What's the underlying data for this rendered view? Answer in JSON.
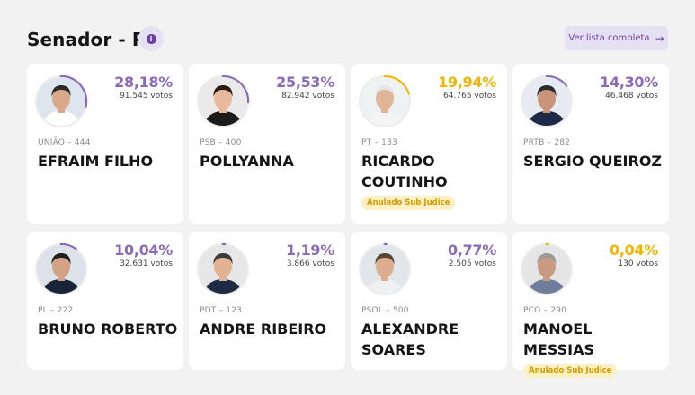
{
  "header": {
    "title": "Senador - PB",
    "info_icon": "info-icon",
    "list_button_label": "Ver lista completa",
    "list_button_icon": "arrow-right-icon"
  },
  "colors": {
    "accent": "#8b6bb8",
    "annulled": "#f5b400",
    "badge_bg": "#fcf0c4"
  },
  "candidates": [
    {
      "party": "UNIÃO – 444",
      "name": "EFRAIM FILHO",
      "pct": "28,18%",
      "votes": "91.545 votos",
      "share": 0.2818,
      "status": "normal",
      "badge": ""
    },
    {
      "party": "PSB – 400",
      "name": "POLLYANNA",
      "pct": "25,53%",
      "votes": "82.942 votos",
      "share": 0.2553,
      "status": "normal",
      "badge": ""
    },
    {
      "party": "PT – 133",
      "name": "RICARDO COUTINHO",
      "pct": "19,94%",
      "votes": "64.765 votos",
      "share": 0.1994,
      "status": "annulled",
      "badge": "Anulado Sub Judice"
    },
    {
      "party": "PRTB – 282",
      "name": "SERGIO QUEIROZ",
      "pct": "14,30%",
      "votes": "46.468 votos",
      "share": 0.143,
      "status": "normal",
      "badge": ""
    },
    {
      "party": "PL – 222",
      "name": "BRUNO ROBERTO",
      "pct": "10,04%",
      "votes": "32.631 votos",
      "share": 0.1004,
      "status": "normal",
      "badge": ""
    },
    {
      "party": "PDT – 123",
      "name": "ANDRE RIBEIRO",
      "pct": "1,19%",
      "votes": "3.866 votos",
      "share": 0.0119,
      "status": "normal",
      "badge": ""
    },
    {
      "party": "PSOL – 500",
      "name": "ALEXANDRE SOARES",
      "pct": "0,77%",
      "votes": "2.505 votos",
      "share": 0.0077,
      "status": "normal",
      "badge": ""
    },
    {
      "party": "PCO – 290",
      "name": "MANOEL MESSIAS",
      "pct": "0,04%",
      "votes": "130 votos",
      "share": 0.0004,
      "status": "annulled",
      "badge": "Anulado Sub Judice"
    }
  ]
}
